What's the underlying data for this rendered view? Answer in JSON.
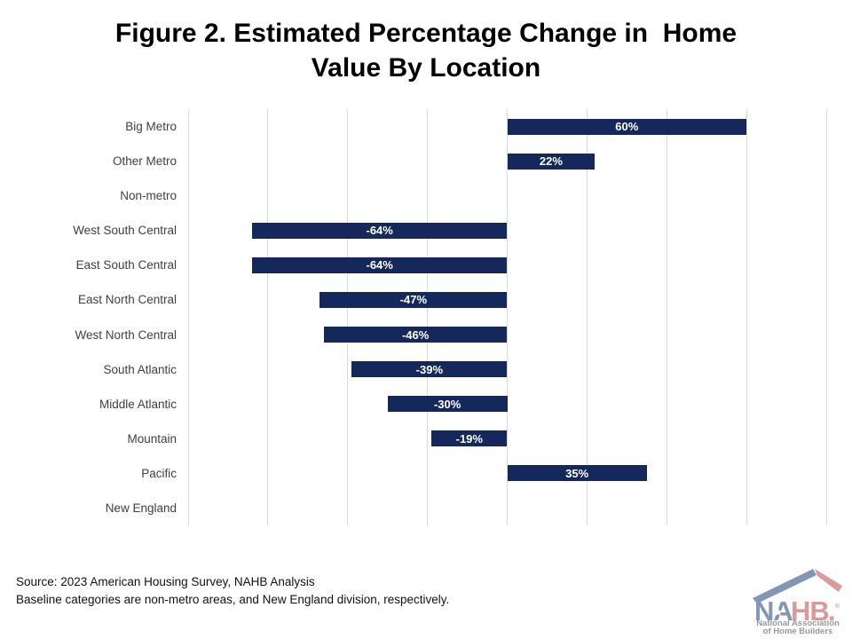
{
  "title": {
    "line1": "Figure 2. Estimated Percentage Change in  Home",
    "line2": "Value By Location"
  },
  "chart_data": {
    "type": "bar",
    "orientation": "horizontal",
    "title": "Figure 2. Estimated Percentage Change in Home Value By Location",
    "categories": [
      "Big Metro",
      "Other Metro",
      "Non-metro",
      "West South Central",
      "East South Central",
      "East North Central",
      "West North Central",
      "South Atlantic",
      "Middle Atlantic",
      "Mountain",
      "Pacific",
      "New England"
    ],
    "values": [
      60,
      22,
      null,
      -64,
      -64,
      -47,
      -46,
      -39,
      -30,
      -19,
      35,
      null
    ],
    "value_labels": [
      "60%",
      "22%",
      "",
      "-64%",
      "-64%",
      "-47%",
      "-46%",
      "-39%",
      "-30%",
      "-19%",
      "35%",
      ""
    ],
    "xlim": [
      -80,
      80
    ],
    "gridline_step": 20,
    "grid": true,
    "legend": false,
    "xlabel": "",
    "ylabel": "",
    "bar_color": "#14285c",
    "value_label_color": "#ffffff",
    "gridline_color": "#d9d9d9",
    "category_label_color": "#404040"
  },
  "footer": {
    "line1": "Source: 2023 American Housing Survey, NAHB Analysis",
    "line2": "Baseline categories are non-metro areas, and New England division, respectively."
  },
  "logo": {
    "brand_na": "NA",
    "brand_hb": "HB",
    "period": ".",
    "registered": "®",
    "star": "★",
    "subtext_line1": "National Association",
    "subtext_line2": "of Home Builders",
    "blue": "#8296b5",
    "red": "#d89a9b",
    "gray": "#95999e"
  }
}
